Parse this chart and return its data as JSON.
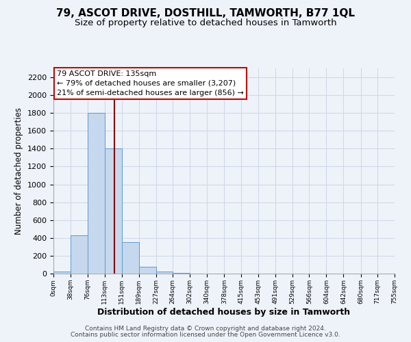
{
  "title1": "79, ASCOT DRIVE, DOSTHILL, TAMWORTH, B77 1QL",
  "title2": "Size of property relative to detached houses in Tamworth",
  "xlabel": "Distribution of detached houses by size in Tamworth",
  "ylabel": "Number of detached properties",
  "footer1": "Contains HM Land Registry data © Crown copyright and database right 2024.",
  "footer2": "Contains public sector information licensed under the Open Government Licence v3.0.",
  "bin_edges": [
    0,
    38,
    76,
    113,
    151,
    189,
    227,
    264,
    302,
    340,
    378,
    415,
    453,
    491,
    529,
    566,
    604,
    642,
    680,
    717,
    755
  ],
  "bin_labels": [
    "0sqm",
    "38sqm",
    "76sqm",
    "113sqm",
    "151sqm",
    "189sqm",
    "227sqm",
    "264sqm",
    "302sqm",
    "340sqm",
    "378sqm",
    "415sqm",
    "453sqm",
    "491sqm",
    "529sqm",
    "566sqm",
    "604sqm",
    "642sqm",
    "680sqm",
    "717sqm",
    "755sqm"
  ],
  "bar_heights": [
    20,
    430,
    1800,
    1400,
    350,
    75,
    25,
    5,
    0,
    0,
    0,
    0,
    0,
    0,
    0,
    0,
    0,
    0,
    0,
    0
  ],
  "bar_color": "#c5d8ed",
  "bar_edge_color": "#5b9bd5",
  "ylim": [
    0,
    2300
  ],
  "yticks": [
    0,
    200,
    400,
    600,
    800,
    1000,
    1200,
    1400,
    1600,
    1800,
    2000,
    2200
  ],
  "property_size": 135,
  "property_label": "79 ASCOT DRIVE: 135sqm",
  "annotation_line1": "← 79% of detached houses are smaller (3,207)",
  "annotation_line2": "21% of semi-detached houses are larger (856) →",
  "vline_color": "#8b0000",
  "annotation_box_color": "#ffffff",
  "annotation_box_edge": "#cc0000",
  "grid_color": "#d0d8e8",
  "background_color": "#eef3fa",
  "title1_fontsize": 11,
  "title2_fontsize": 9.5
}
